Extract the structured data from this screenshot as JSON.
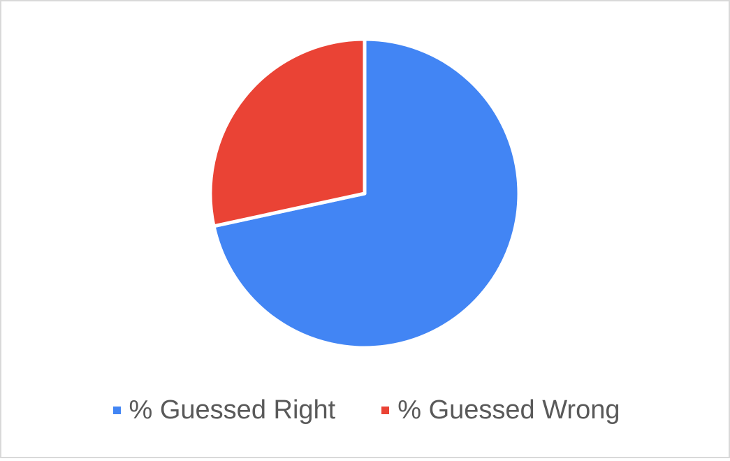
{
  "chart_data": {
    "type": "pie",
    "title": "",
    "slices": [
      {
        "name": "% Guessed Right",
        "value": 71.6,
        "color": "#4285f4"
      },
      {
        "name": "% Guessed Wrong",
        "value": 28.4,
        "color": "#ea4335"
      }
    ],
    "start_angle_deg": 0,
    "direction": "clockwise",
    "legend_position": "bottom"
  }
}
